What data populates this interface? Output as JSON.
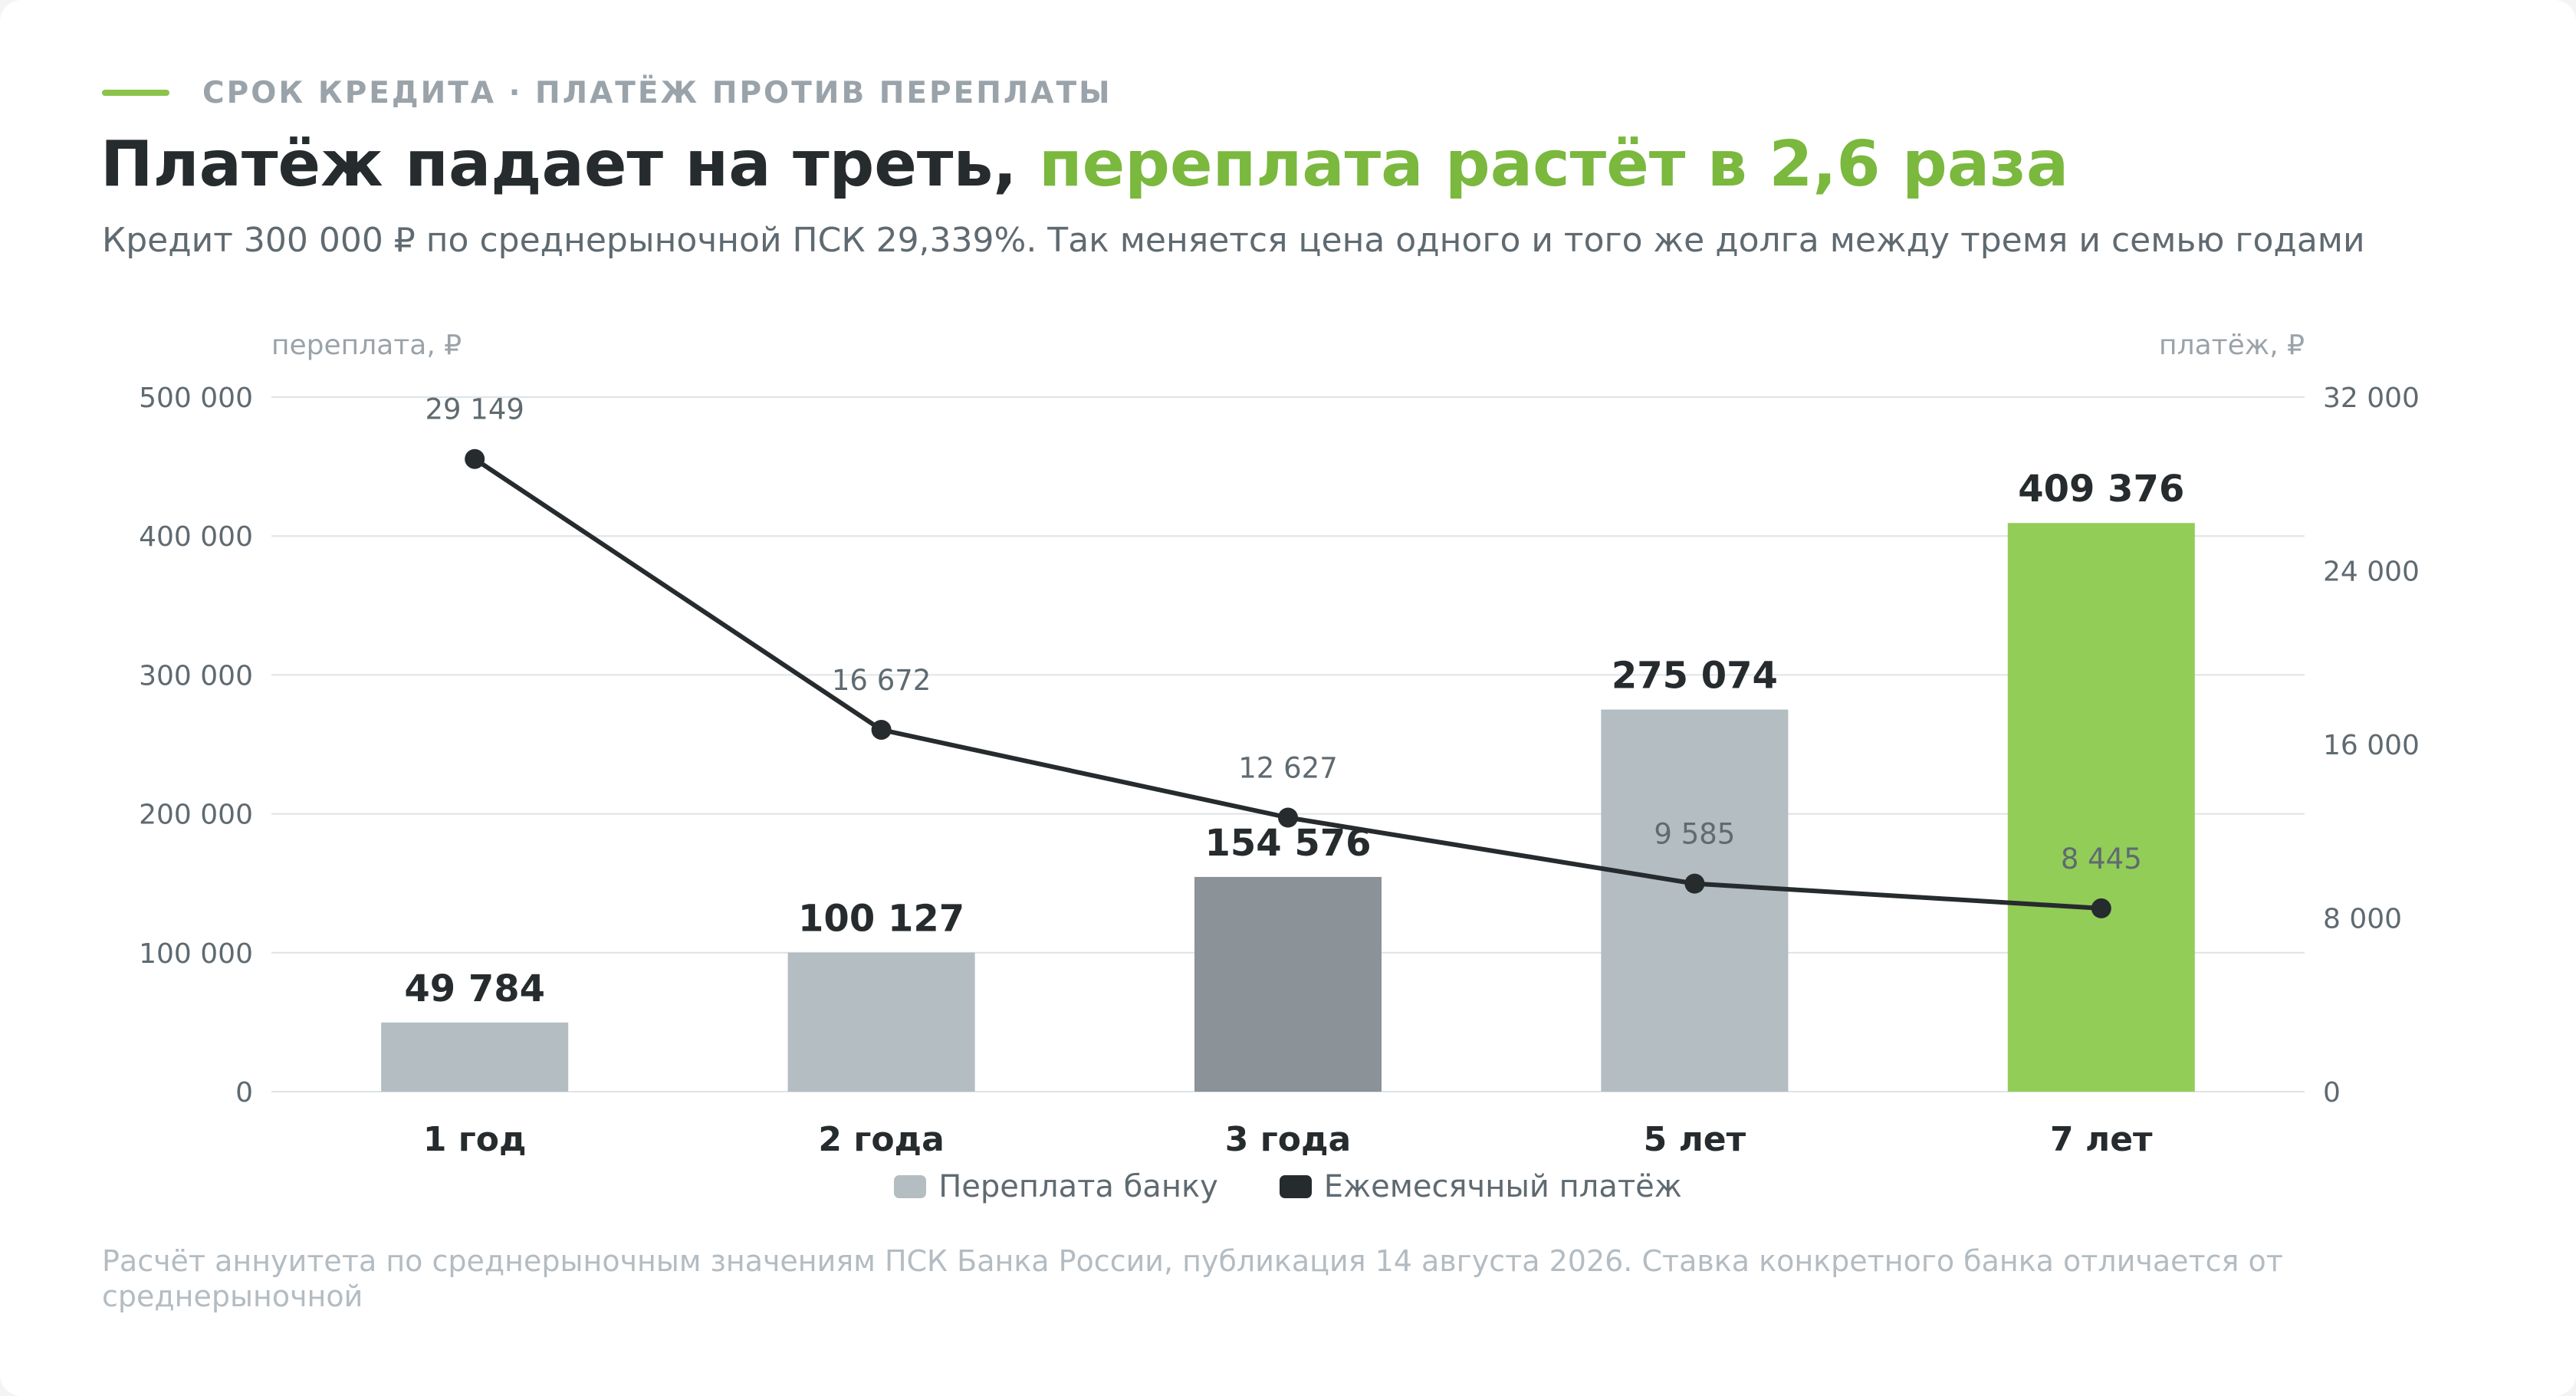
{
  "header": {
    "kicker": "СРОК КРЕДИТА · ПЛАТЁЖ ПРОТИВ ПЕРЕПЛАТЫ",
    "title_main": "Платёж падает на треть, ",
    "title_accent": "переплата растёт в 2,6 раза",
    "subtitle": "Кредит 300 000 ₽ по среднерыночной ПСК 29,339%. Так меняется цена одного и того же долга между тремя и семью годами"
  },
  "footnote": "Расчёт аннуитета по среднерыночным значениям ПСК Банка России, публикация 14 августа 2026. Ставка конкретного банка отличается от среднерыночной",
  "colors": {
    "accent": "#7ab83e",
    "bar_default": "#b3bdc2",
    "bar_mid": "#8b9399",
    "bar_highlight": "#92cd58",
    "line": "#262b2e",
    "grid": "#dfe3e6"
  },
  "chart_data": {
    "type": "bar",
    "categories": [
      "1 год",
      "2 года",
      "3 года",
      "5 лет",
      "7 лет"
    ],
    "y_left_label": "переплата, ₽",
    "y_right_label": "платёж, ₽",
    "y_left_ticks": [
      "0",
      "100 000",
      "200 000",
      "300 000",
      "400 000",
      "500 000"
    ],
    "y_right_ticks": [
      "0",
      "8 000",
      "16 000",
      "24 000",
      "32 000"
    ],
    "ylim_left": [
      0,
      500000
    ],
    "ylim_right": [
      0,
      32000
    ],
    "grid": true,
    "legend_position": "bottom-center",
    "series": [
      {
        "name": "Переплата банку",
        "type": "bar",
        "axis": "left",
        "values": [
          49784,
          100127,
          154576,
          275074,
          409376
        ],
        "labels": [
          "49 784",
          "100 127",
          "154 576",
          "275 074",
          "409 376"
        ],
        "colors": [
          "#b3bdc2",
          "#b3bdc2",
          "#8b9399",
          "#b3bdc2",
          "#92cd58"
        ]
      },
      {
        "name": "Ежемесячный платёж",
        "type": "line",
        "axis": "right",
        "values": [
          29149,
          16672,
          12627,
          9585,
          8445
        ],
        "labels": [
          "29 149",
          "16 672",
          "12 627",
          "9 585",
          "8 445"
        ],
        "color": "#262b2e"
      }
    ]
  }
}
